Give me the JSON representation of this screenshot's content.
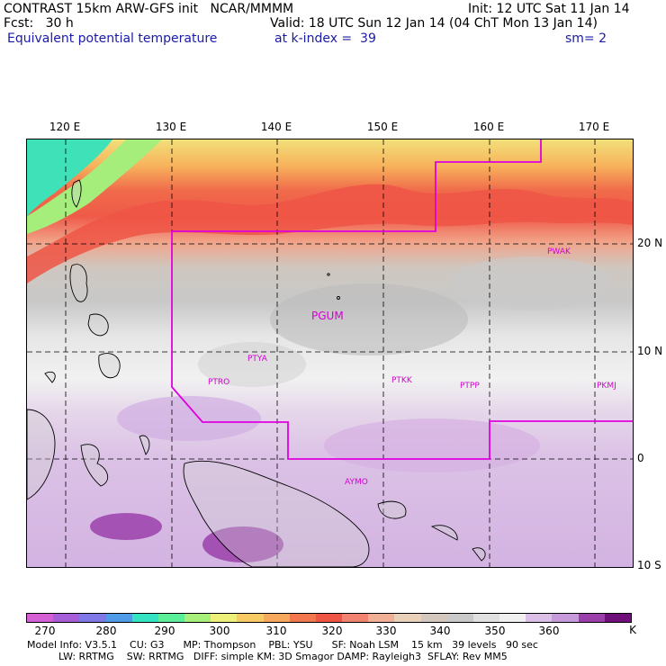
{
  "header": {
    "left_line1": "CONTRAST 15km ARW-GFS init   NCAR/MMMM",
    "left_line2": "Fcst:   30 h",
    "left_line3": "Equivalent potential temperature",
    "right_line1": "Init: 12 UTC Sat 11 Jan 14",
    "right_line2": "Valid: 18 UTC Sun 12 Jan 14 (04 ChT Mon 13 Jan 14)",
    "right_line3_a": "at k-index =  39",
    "right_line3_b": "sm= 2"
  },
  "longitude_labels": [
    "120 E",
    "130 E",
    "140 E",
    "150 E",
    "160 E",
    "170 E"
  ],
  "latitude_labels": [
    "20 N",
    "10 N",
    "0",
    "10 S"
  ],
  "stations": [
    "PWAK",
    "PGUM",
    "PTYA",
    "PTRO",
    "PTKK",
    "PTPP",
    "PKMJ",
    "AYMO"
  ],
  "colorbar": {
    "labels": [
      "270",
      "280",
      "290",
      "300",
      "310",
      "320",
      "330",
      "340",
      "350",
      "360",
      "K"
    ],
    "colors": [
      "#d55fd5",
      "#a65fd8",
      "#7f78e6",
      "#4f9be8",
      "#33e3c1",
      "#5cef9a",
      "#a7f07a",
      "#eef07c",
      "#f7ca66",
      "#f6a85c",
      "#f2774f",
      "#ef5545",
      "#f28370",
      "#f1b095",
      "#e9d0b8",
      "#d4c8be",
      "#c9c9c9",
      "#e0e0e0",
      "#f0f0f0",
      "#dcbfe6",
      "#c79bdb",
      "#9b3fab",
      "#6e0f7a"
    ]
  },
  "footer": {
    "line1": "Model Info: V3.5.1    CU: G3      MP: Thompson    PBL: YSU      SF: Noah LSM    15 km   39 levels   90 sec",
    "line2": "          LW: RRTMG    SW: RRTMG   DIFF: simple KM: 3D Smagor DAMP: Rayleigh3  SFLAY: Rev MM5"
  }
}
